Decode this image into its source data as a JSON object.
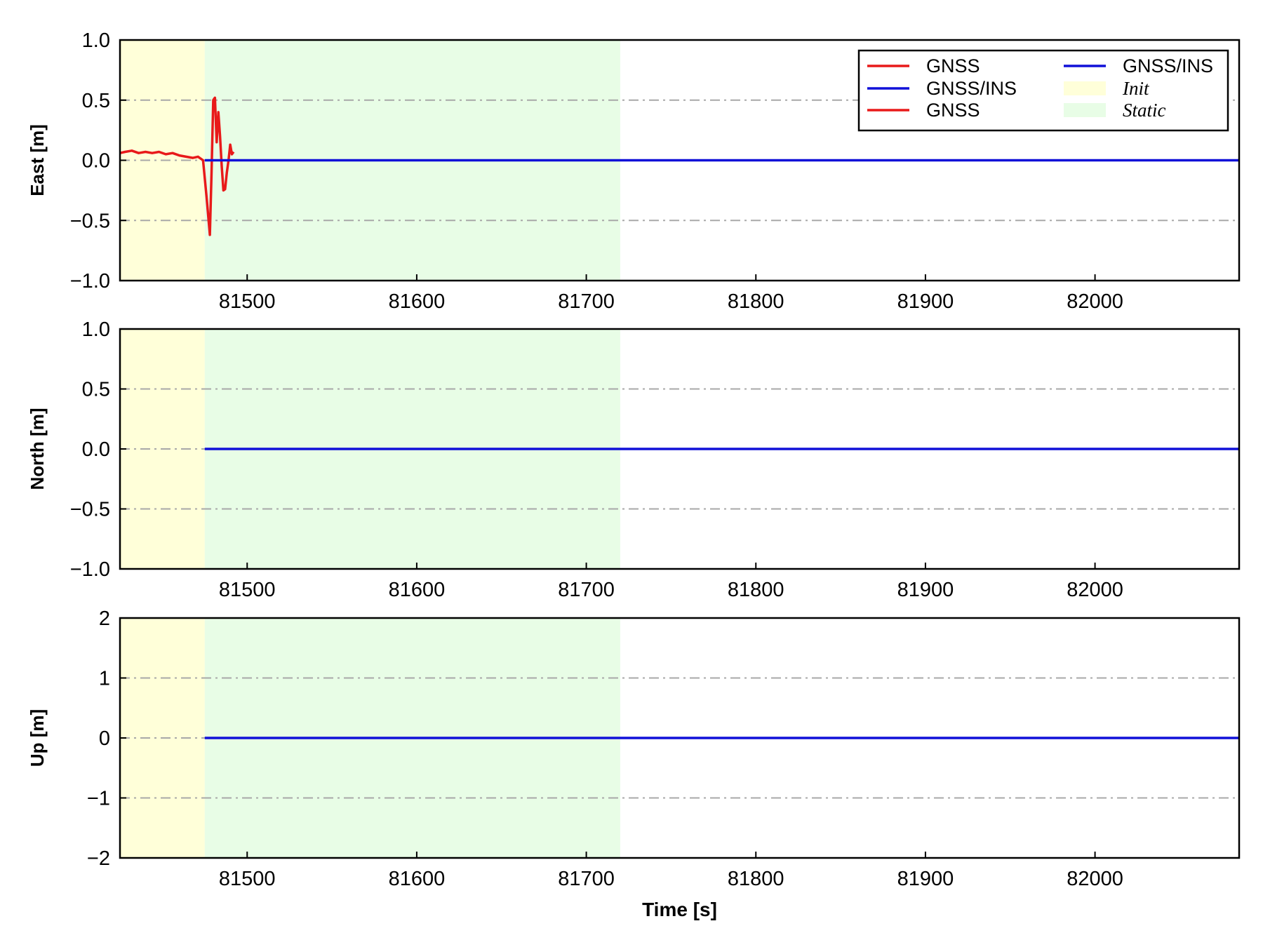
{
  "chart_data": [
    {
      "type": "line",
      "ylabel": "East [m]",
      "xlabel": "",
      "xlim": [
        81425,
        82085
      ],
      "ylim": [
        -1.0,
        1.0
      ],
      "x_ticks": [
        81500,
        81600,
        81700,
        81800,
        81900,
        82000
      ],
      "y_ticks": [
        -1.0,
        -0.5,
        0.0,
        0.5,
        1.0
      ],
      "y_tick_labels": [
        "−1.0",
        "−0.5",
        "0.0",
        "0.5",
        "1.0"
      ],
      "x_tick_labels": [
        "81500",
        "81600",
        "81700",
        "81800",
        "81900",
        "82000"
      ],
      "grid": "horizontal dash-dot at 0.5 steps",
      "shaded_regions": [
        {
          "name": "Init",
          "x_start": 81425,
          "x_end": 81475,
          "color": "#ffffd9"
        },
        {
          "name": "Static",
          "x_start": 81475,
          "x_end": 81720,
          "color": "#e8fde6"
        }
      ],
      "series": [
        {
          "name": "GNSS",
          "color": "#e81a1a",
          "x": [
            81425,
            81428,
            81432,
            81436,
            81440,
            81444,
            81448,
            81452,
            81456,
            81460,
            81464,
            81468,
            81471,
            81474,
            81476,
            81478,
            81479,
            81480,
            81481,
            81482,
            81483,
            81484,
            81485,
            81486,
            81487,
            81488,
            81489,
            81490,
            81491,
            81492
          ],
          "y": [
            0.06,
            0.07,
            0.08,
            0.06,
            0.07,
            0.06,
            0.07,
            0.05,
            0.06,
            0.04,
            0.03,
            0.02,
            0.03,
            0.0,
            -0.3,
            -0.62,
            -0.1,
            0.5,
            0.52,
            0.15,
            0.4,
            0.2,
            -0.05,
            -0.25,
            -0.24,
            -0.1,
            0.0,
            0.13,
            0.05,
            0.07
          ]
        },
        {
          "name": "GNSS/INS",
          "color": "#1010d8",
          "x": [
            81475,
            82085
          ],
          "y": [
            0.0,
            0.0
          ]
        }
      ],
      "legend": {
        "placement": "top-right",
        "entries": [
          {
            "label": "GNSS",
            "kind": "line",
            "color": "#e81a1a"
          },
          {
            "label": "GNSS/INS",
            "kind": "line",
            "color": "#1010d8"
          },
          {
            "label": "GNSS",
            "kind": "line",
            "color": "#e81a1a"
          },
          {
            "label": "GNSS/INS",
            "kind": "line",
            "color": "#1010d8"
          },
          {
            "label": "Init",
            "kind": "patch",
            "color": "#ffffd9"
          },
          {
            "label": "Static",
            "kind": "patch",
            "color": "#e8fde6"
          }
        ]
      }
    },
    {
      "type": "line",
      "ylabel": "North [m]",
      "xlabel": "",
      "xlim": [
        81425,
        82085
      ],
      "ylim": [
        -1.0,
        1.0
      ],
      "x_ticks": [
        81500,
        81600,
        81700,
        81800,
        81900,
        82000
      ],
      "y_ticks": [
        -1.0,
        -0.5,
        0.0,
        0.5,
        1.0
      ],
      "y_tick_labels": [
        "−1.0",
        "−0.5",
        "0.0",
        "0.5",
        "1.0"
      ],
      "x_tick_labels": [
        "81500",
        "81600",
        "81700",
        "81800",
        "81900",
        "82000"
      ],
      "grid": "horizontal dash-dot at 0.5 steps",
      "shaded_regions": [
        {
          "name": "Init",
          "x_start": 81425,
          "x_end": 81475,
          "color": "#ffffd9"
        },
        {
          "name": "Static",
          "x_start": 81475,
          "x_end": 81720,
          "color": "#e8fde6"
        }
      ],
      "series": [
        {
          "name": "GNSS/INS",
          "color": "#1010d8",
          "x": [
            81475,
            82085
          ],
          "y": [
            0.0,
            0.0
          ]
        }
      ]
    },
    {
      "type": "line",
      "ylabel": "Up [m]",
      "xlabel": "Time [s]",
      "xlim": [
        81425,
        82085
      ],
      "ylim": [
        -2,
        2
      ],
      "x_ticks": [
        81500,
        81600,
        81700,
        81800,
        81900,
        82000
      ],
      "y_ticks": [
        -2,
        -1,
        0,
        1,
        2
      ],
      "y_tick_labels": [
        "−2",
        "−1",
        "0",
        "1",
        "2"
      ],
      "x_tick_labels": [
        "81500",
        "81600",
        "81700",
        "81800",
        "81900",
        "82000"
      ],
      "grid": "horizontal dash-dot at 1 steps",
      "shaded_regions": [
        {
          "name": "Init",
          "x_start": 81425,
          "x_end": 81475,
          "color": "#ffffd9"
        },
        {
          "name": "Static",
          "x_start": 81475,
          "x_end": 81720,
          "color": "#e8fde6"
        }
      ],
      "series": [
        {
          "name": "GNSS/INS",
          "color": "#1010d8",
          "x": [
            81475,
            82085
          ],
          "y": [
            0.0,
            0.0
          ]
        }
      ]
    }
  ]
}
